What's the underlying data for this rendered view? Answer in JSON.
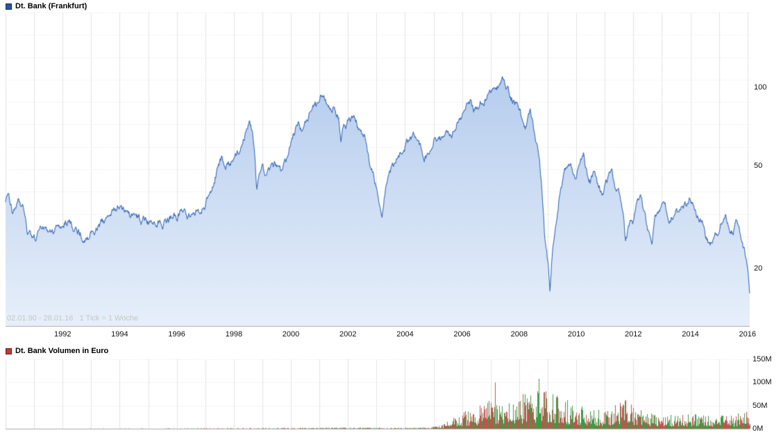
{
  "price_chart": {
    "legend": "Dt. Bank (Frankfurt)",
    "info_text": "02.01.90 - 28.01.16   1 Tick = 1 Woche"
  },
  "volume_chart": {
    "legend": "Dt. Bank Volumen in Euro"
  },
  "colors": {
    "price_line": "#3a6bb8",
    "price_fill_top": "#b6cdee",
    "price_fill_bottom": "#e7effa",
    "price_swatch": "#2457a6",
    "volume_swatch": "#c03a3a",
    "volume_up": "#3d9b42",
    "volume_down": "#c94f4f",
    "grid": "#e3e3e3",
    "axis": "#ababab",
    "tick_text": "#111111",
    "info_text": "#c6c6c6"
  },
  "chart_data": [
    {
      "type": "area",
      "title": "Dt. Bank (Frankfurt)",
      "x_unit": "year",
      "y_unit": "EUR",
      "y_scale": "log",
      "legend_position": "top-left",
      "grid": true,
      "x_range": [
        1990.0,
        2016.08
      ],
      "x_ticks": [
        1992,
        1994,
        1996,
        1998,
        2000,
        2002,
        2004,
        2006,
        2008,
        2010,
        2012,
        2014,
        2016
      ],
      "y_ticks": [
        {
          "value": 100,
          "label": "100"
        },
        {
          "value": 50,
          "label": "50"
        },
        {
          "value": 20,
          "label": "20"
        }
      ],
      "annotation": "02.01.90 - 28.01.16   1 Tick = 1 Woche",
      "points": [
        [
          1990.0,
          37
        ],
        [
          1990.1,
          39
        ],
        [
          1990.25,
          33
        ],
        [
          1990.45,
          36
        ],
        [
          1990.6,
          34
        ],
        [
          1990.75,
          28
        ],
        [
          1990.9,
          26
        ],
        [
          1991.05,
          25.5
        ],
        [
          1991.2,
          28
        ],
        [
          1991.4,
          29.5
        ],
        [
          1991.55,
          27.5
        ],
        [
          1991.75,
          28.5
        ],
        [
          1992.0,
          30
        ],
        [
          1992.2,
          31
        ],
        [
          1992.4,
          29
        ],
        [
          1992.6,
          27.5
        ],
        [
          1992.8,
          26.5
        ],
        [
          1993.0,
          27.5
        ],
        [
          1993.25,
          29
        ],
        [
          1993.5,
          30.5
        ],
        [
          1993.75,
          33
        ],
        [
          1994.0,
          35.5
        ],
        [
          1994.15,
          33.5
        ],
        [
          1994.35,
          31.5
        ],
        [
          1994.55,
          32.5
        ],
        [
          1994.75,
          31
        ],
        [
          1995.0,
          30
        ],
        [
          1995.25,
          31.5
        ],
        [
          1995.5,
          30.5
        ],
        [
          1995.75,
          31.5
        ],
        [
          1996.0,
          32
        ],
        [
          1996.25,
          33
        ],
        [
          1996.5,
          32
        ],
        [
          1996.75,
          33.5
        ],
        [
          1997.0,
          35
        ],
        [
          1997.15,
          38
        ],
        [
          1997.3,
          44
        ],
        [
          1997.45,
          50
        ],
        [
          1997.6,
          53
        ],
        [
          1997.7,
          47
        ],
        [
          1997.85,
          50
        ],
        [
          1998.0,
          52
        ],
        [
          1998.15,
          58
        ],
        [
          1998.3,
          62
        ],
        [
          1998.45,
          68
        ],
        [
          1998.55,
          73
        ],
        [
          1998.65,
          68
        ],
        [
          1998.72,
          58
        ],
        [
          1998.8,
          38
        ],
        [
          1998.9,
          44
        ],
        [
          1999.0,
          48
        ],
        [
          1999.15,
          44
        ],
        [
          1999.3,
          47
        ],
        [
          1999.5,
          50
        ],
        [
          1999.65,
          46
        ],
        [
          1999.8,
          50
        ],
        [
          1999.95,
          58
        ],
        [
          2000.1,
          66
        ],
        [
          2000.25,
          72
        ],
        [
          2000.4,
          68
        ],
        [
          2000.55,
          75
        ],
        [
          2000.7,
          82
        ],
        [
          2000.85,
          88
        ],
        [
          2001.0,
          85
        ],
        [
          2001.1,
          92
        ],
        [
          2001.25,
          88
        ],
        [
          2001.4,
          82
        ],
        [
          2001.55,
          86
        ],
        [
          2001.68,
          78
        ],
        [
          2001.75,
          62
        ],
        [
          2001.85,
          70
        ],
        [
          2002.0,
          74
        ],
        [
          2002.15,
          77
        ],
        [
          2002.3,
          72
        ],
        [
          2002.45,
          66
        ],
        [
          2002.6,
          62
        ],
        [
          2002.75,
          52
        ],
        [
          2002.9,
          46
        ],
        [
          2003.0,
          42
        ],
        [
          2003.1,
          36
        ],
        [
          2003.2,
          34
        ],
        [
          2003.35,
          42
        ],
        [
          2003.5,
          48
        ],
        [
          2003.65,
          52
        ],
        [
          2003.8,
          55
        ],
        [
          2004.0,
          60
        ],
        [
          2004.15,
          64
        ],
        [
          2004.3,
          66
        ],
        [
          2004.45,
          60
        ],
        [
          2004.6,
          57
        ],
        [
          2004.75,
          55
        ],
        [
          2004.9,
          58
        ],
        [
          2005.0,
          62
        ],
        [
          2005.15,
          64
        ],
        [
          2005.3,
          62
        ],
        [
          2005.45,
          64
        ],
        [
          2005.6,
          67
        ],
        [
          2005.75,
          70
        ],
        [
          2005.9,
          76
        ],
        [
          2006.0,
          80
        ],
        [
          2006.15,
          86
        ],
        [
          2006.3,
          90
        ],
        [
          2006.4,
          84
        ],
        [
          2006.55,
          82
        ],
        [
          2006.7,
          88
        ],
        [
          2006.85,
          94
        ],
        [
          2007.0,
          96
        ],
        [
          2007.1,
          100
        ],
        [
          2007.25,
          102
        ],
        [
          2007.4,
          108
        ],
        [
          2007.5,
          103
        ],
        [
          2007.6,
          98
        ],
        [
          2007.7,
          92
        ],
        [
          2007.85,
          88
        ],
        [
          2008.0,
          84
        ],
        [
          2008.1,
          76
        ],
        [
          2008.25,
          72
        ],
        [
          2008.4,
          78
        ],
        [
          2008.55,
          64
        ],
        [
          2008.7,
          55
        ],
        [
          2008.8,
          40
        ],
        [
          2008.88,
          28
        ],
        [
          2008.95,
          24
        ],
        [
          2009.02,
          20
        ],
        [
          2009.08,
          16
        ],
        [
          2009.15,
          22
        ],
        [
          2009.25,
          28
        ],
        [
          2009.35,
          34
        ],
        [
          2009.45,
          42
        ],
        [
          2009.55,
          46
        ],
        [
          2009.65,
          48
        ],
        [
          2009.75,
          50
        ],
        [
          2009.9,
          48
        ],
        [
          2010.0,
          47
        ],
        [
          2010.1,
          50
        ],
        [
          2010.25,
          54
        ],
        [
          2010.35,
          48
        ],
        [
          2010.5,
          44
        ],
        [
          2010.6,
          47
        ],
        [
          2010.75,
          42
        ],
        [
          2010.9,
          40
        ],
        [
          2011.0,
          42
        ],
        [
          2011.1,
          44
        ],
        [
          2011.25,
          46
        ],
        [
          2011.4,
          42
        ],
        [
          2011.55,
          38
        ],
        [
          2011.65,
          32
        ],
        [
          2011.72,
          26
        ],
        [
          2011.8,
          28
        ],
        [
          2011.9,
          30
        ],
        [
          2012.0,
          31
        ],
        [
          2012.1,
          34
        ],
        [
          2012.25,
          37
        ],
        [
          2012.4,
          32
        ],
        [
          2012.5,
          28
        ],
        [
          2012.65,
          26
        ],
        [
          2012.75,
          31
        ],
        [
          2012.9,
          33
        ],
        [
          2013.0,
          36
        ],
        [
          2013.15,
          34
        ],
        [
          2013.3,
          32
        ],
        [
          2013.45,
          34
        ],
        [
          2013.6,
          33
        ],
        [
          2013.75,
          34
        ],
        [
          2013.9,
          35
        ],
        [
          2014.0,
          37
        ],
        [
          2014.1,
          36
        ],
        [
          2014.25,
          32
        ],
        [
          2014.4,
          30
        ],
        [
          2014.55,
          27
        ],
        [
          2014.7,
          25
        ],
        [
          2014.85,
          26
        ],
        [
          2015.0,
          28
        ],
        [
          2015.1,
          30
        ],
        [
          2015.25,
          32
        ],
        [
          2015.35,
          30
        ],
        [
          2015.5,
          28
        ],
        [
          2015.6,
          29
        ],
        [
          2015.75,
          26
        ],
        [
          2015.85,
          24
        ],
        [
          2015.95,
          22
        ],
        [
          2016.02,
          19
        ],
        [
          2016.08,
          15.5
        ]
      ]
    },
    {
      "type": "bar",
      "title": "Dt. Bank Volumen in Euro",
      "x_unit": "year",
      "y_unit": "EUR volume, millions",
      "bar_cadence": "weekly",
      "y_ticks": [
        {
          "value": 150,
          "label": "150M"
        },
        {
          "value": 100,
          "label": "100M"
        },
        {
          "value": 50,
          "label": "50M"
        },
        {
          "value": 0,
          "label": "0M"
        }
      ],
      "envelope": [
        [
          1990.0,
          0.3
        ],
        [
          1996.0,
          0.4
        ],
        [
          2000.0,
          0.8
        ],
        [
          2002.0,
          1.2
        ],
        [
          2004.0,
          1
        ],
        [
          2004.9,
          1.5
        ],
        [
          2005.3,
          4
        ],
        [
          2005.6,
          12
        ],
        [
          2006.0,
          18
        ],
        [
          2006.5,
          24
        ],
        [
          2007.0,
          32
        ],
        [
          2007.5,
          38
        ],
        [
          2008.0,
          36
        ],
        [
          2008.5,
          42
        ],
        [
          2009.0,
          42
        ],
        [
          2009.5,
          34
        ],
        [
          2010.0,
          26
        ],
        [
          2010.5,
          22
        ],
        [
          2011.0,
          20
        ],
        [
          2011.5,
          28
        ],
        [
          2011.8,
          34
        ],
        [
          2012.0,
          26
        ],
        [
          2012.5,
          18
        ],
        [
          2013.0,
          16
        ],
        [
          2013.5,
          15
        ],
        [
          2014.0,
          17
        ],
        [
          2014.5,
          15
        ],
        [
          2015.0,
          16
        ],
        [
          2015.5,
          14
        ],
        [
          2016.0,
          22
        ],
        [
          2016.08,
          26
        ]
      ],
      "spikes": [
        [
          2007.15,
          100,
          "down"
        ],
        [
          2008.7,
          108,
          "up"
        ]
      ]
    }
  ]
}
